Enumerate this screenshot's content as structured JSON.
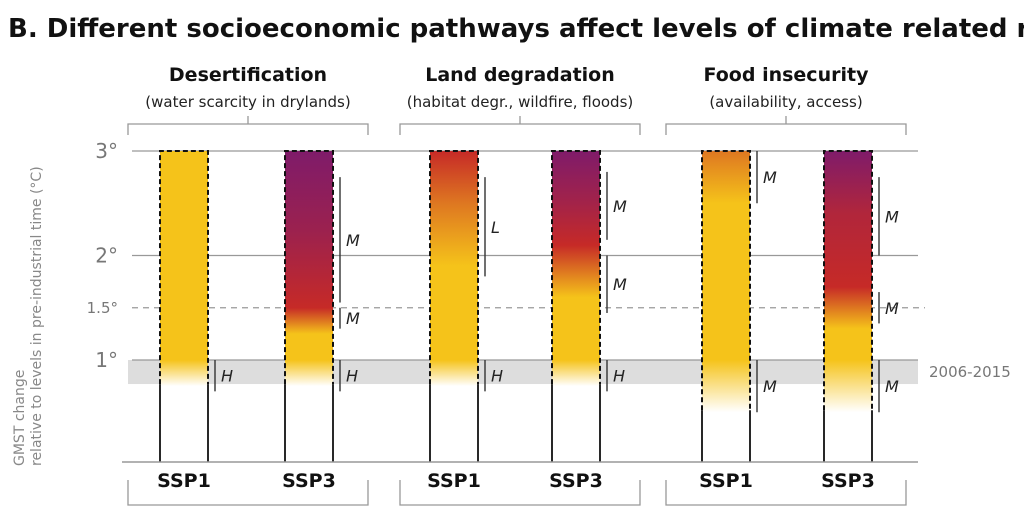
{
  "chart_data": {
    "type": "heatmap",
    "title": "B. Different socioeconomic pathways affect levels of climate related risks",
    "ylabel_line1": "GMST change",
    "ylabel_line2": "relative to levels in pre-industrial time (°C)",
    "ylim": [
      0,
      3
    ],
    "yticks": [
      {
        "value": 3,
        "label": "3°"
      },
      {
        "value": 2,
        "label": "2°"
      },
      {
        "value": 1.5,
        "label": "1.5°"
      },
      {
        "value": 1,
        "label": "1°"
      }
    ],
    "reference_band": {
      "from": 0.77,
      "to": 1.0,
      "label": "2006-2015"
    },
    "groups": [
      {
        "name": "Desertification",
        "subtitle": "(water scarcity in drylands)",
        "columns": [
          {
            "label": "SSP1",
            "stops": [
              {
                "t": 0.75,
                "level": 0
              },
              {
                "t": 1.0,
                "level": 1
              },
              {
                "t": 3.0,
                "level": 1
              }
            ],
            "confidence": [
              {
                "from": 0.7,
                "to": 1.0,
                "label": "H"
              }
            ]
          },
          {
            "label": "SSP3",
            "stops": [
              {
                "t": 0.75,
                "level": 0
              },
              {
                "t": 1.0,
                "level": 1
              },
              {
                "t": 1.25,
                "level": 1
              },
              {
                "t": 1.5,
                "level": 2
              },
              {
                "t": 2.25,
                "level": 2.6
              },
              {
                "t": 3.0,
                "level": 3
              }
            ],
            "confidence": [
              {
                "from": 0.7,
                "to": 1.0,
                "label": "H"
              },
              {
                "from": 1.3,
                "to": 1.5,
                "label": "M"
              },
              {
                "from": 1.55,
                "to": 2.75,
                "label": "M"
              }
            ]
          }
        ]
      },
      {
        "name": "Land degradation",
        "subtitle": "(habitat degr., wildfire, floods)",
        "columns": [
          {
            "label": "SSP1",
            "stops": [
              {
                "t": 0.75,
                "level": 0
              },
              {
                "t": 1.0,
                "level": 1
              },
              {
                "t": 1.9,
                "level": 1
              },
              {
                "t": 2.5,
                "level": 1.5
              },
              {
                "t": 3.0,
                "level": 2
              }
            ],
            "confidence": [
              {
                "from": 0.7,
                "to": 1.0,
                "label": "H"
              },
              {
                "from": 1.8,
                "to": 2.75,
                "label": "L"
              }
            ]
          },
          {
            "label": "SSP3",
            "stops": [
              {
                "t": 0.75,
                "level": 0
              },
              {
                "t": 1.0,
                "level": 1
              },
              {
                "t": 1.6,
                "level": 1
              },
              {
                "t": 2.1,
                "level": 2
              },
              {
                "t": 2.5,
                "level": 2.5
              },
              {
                "t": 3.0,
                "level": 3
              }
            ],
            "confidence": [
              {
                "from": 0.7,
                "to": 1.0,
                "label": "H"
              },
              {
                "from": 1.45,
                "to": 2.0,
                "label": "M"
              },
              {
                "from": 2.15,
                "to": 2.8,
                "label": "M"
              }
            ]
          }
        ]
      },
      {
        "name": "Food insecurity",
        "subtitle": "(availability, access)",
        "columns": [
          {
            "label": "SSP1",
            "stops": [
              {
                "t": 0.5,
                "level": 0
              },
              {
                "t": 1.0,
                "level": 1
              },
              {
                "t": 2.5,
                "level": 1
              },
              {
                "t": 3.0,
                "level": 1.5
              }
            ],
            "confidence": [
              {
                "from": 0.5,
                "to": 1.0,
                "label": "M"
              },
              {
                "from": 2.5,
                "to": 3.0,
                "label": "M"
              }
            ]
          },
          {
            "label": "SSP3",
            "stops": [
              {
                "t": 0.5,
                "level": 0
              },
              {
                "t": 1.0,
                "level": 1
              },
              {
                "t": 1.3,
                "level": 1
              },
              {
                "t": 1.7,
                "level": 2
              },
              {
                "t": 2.4,
                "level": 2.3
              },
              {
                "t": 3.0,
                "level": 3
              }
            ],
            "confidence": [
              {
                "from": 0.5,
                "to": 1.0,
                "label": "M"
              },
              {
                "from": 1.35,
                "to": 1.65,
                "label": "M"
              },
              {
                "from": 2.0,
                "to": 2.75,
                "label": "M"
              }
            ]
          }
        ]
      }
    ],
    "colors": {
      "undetectable": "#ffffff",
      "moderate": "#f5c31a",
      "high": "#c62a27",
      "very_high": "#7f1b6a",
      "axis": "#999999",
      "band": "#dddddd"
    }
  }
}
